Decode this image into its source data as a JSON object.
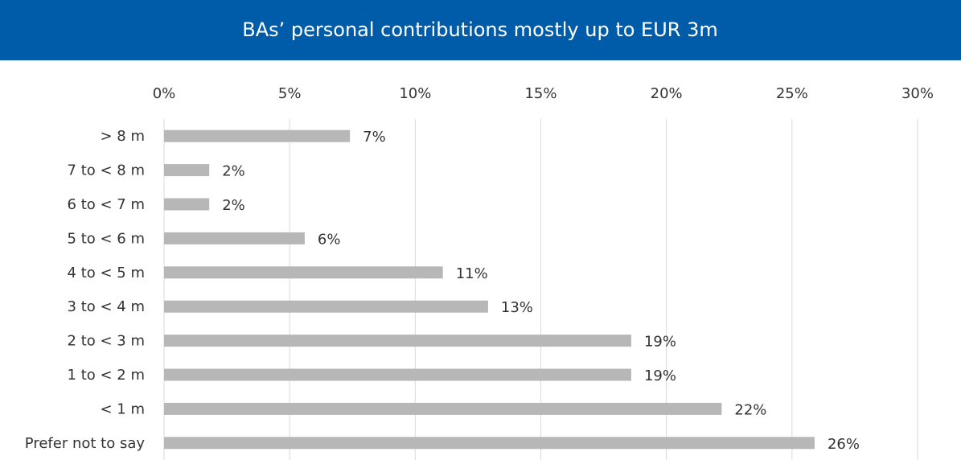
{
  "chart_data": {
    "type": "barh",
    "title": "BAs’ personal contributions mostly up to EUR 3m",
    "categories": [
      "> 8 m",
      "7 to < 8 m",
      "6 to < 7 m",
      "5 to < 6 m",
      "4 to < 5 m",
      "3 to < 4 m",
      "2 to < 3 m",
      "1 to < 2 m",
      "< 1 m",
      "Prefer not to say"
    ],
    "values": [
      7.4,
      1.8,
      1.8,
      5.6,
      11.1,
      12.9,
      18.6,
      18.6,
      22.2,
      25.9
    ],
    "value_labels": [
      "7%",
      "2%",
      "2%",
      "6%",
      "11%",
      "13%",
      "19%",
      "19%",
      "22%",
      "26%"
    ],
    "color": "#b7b7b7",
    "xlim": [
      0,
      30
    ],
    "xticks": [
      {
        "value": 0,
        "label": "0%"
      },
      {
        "value": 5,
        "label": "5%"
      },
      {
        "value": 10,
        "label": "10%"
      },
      {
        "value": 15,
        "label": "15%"
      },
      {
        "value": 20,
        "label": "20%"
      },
      {
        "value": 25,
        "label": "25%"
      },
      {
        "value": 30,
        "label": "30%"
      }
    ],
    "grid": true
  }
}
